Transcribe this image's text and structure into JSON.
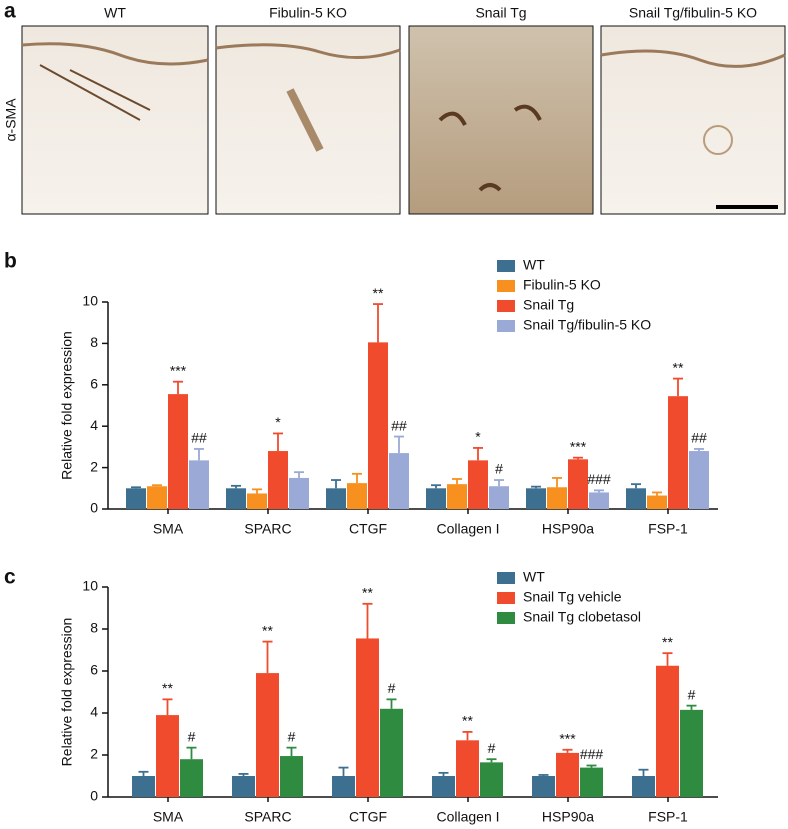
{
  "panel_a": {
    "label": "a",
    "row_label": "α-SMA",
    "columns": [
      "WT",
      "Fibulin-5 KO",
      "Snail Tg",
      "Snail Tg/fibulin-5 KO"
    ]
  },
  "chart_data": [
    {
      "type": "bar",
      "panel_label": "b",
      "ylabel": "Relative fold expression",
      "categories": [
        "SMA",
        "SPARC",
        "CTGF",
        "Collagen I",
        "HSP90a",
        "FSP-1"
      ],
      "ylim": [
        0,
        10
      ],
      "yticks": [
        0,
        2,
        4,
        6,
        8,
        10
      ],
      "series": [
        {
          "name": "WT",
          "color": "#3d7090",
          "values": [
            1.0,
            1.0,
            1.0,
            1.0,
            1.0,
            1.0
          ],
          "errors": [
            0.05,
            0.12,
            0.4,
            0.15,
            0.08,
            0.2
          ]
        },
        {
          "name": "Fibulin-5 KO",
          "color": "#f7901e",
          "values": [
            1.1,
            0.75,
            1.25,
            1.2,
            1.05,
            0.65
          ],
          "errors": [
            0.05,
            0.2,
            0.45,
            0.25,
            0.45,
            0.15
          ]
        },
        {
          "name": "Snail Tg",
          "color": "#ef4b2c",
          "values": [
            5.55,
            2.8,
            8.05,
            2.35,
            2.4,
            5.45
          ],
          "errors": [
            0.6,
            0.85,
            1.85,
            0.6,
            0.08,
            0.85
          ],
          "annotations": [
            "***",
            "*",
            "**",
            "*",
            "***",
            "**"
          ]
        },
        {
          "name": "Snail Tg/fibulin-5 KO",
          "color": "#9aa9d6",
          "values": [
            2.35,
            1.5,
            2.7,
            1.1,
            0.8,
            2.8
          ],
          "errors": [
            0.55,
            0.28,
            0.8,
            0.3,
            0.1,
            0.1
          ],
          "annotations": [
            "##",
            null,
            "##",
            "#",
            "###",
            "##"
          ]
        }
      ]
    },
    {
      "type": "bar",
      "panel_label": "c",
      "ylabel": "Relative fold expression",
      "categories": [
        "SMA",
        "SPARC",
        "CTGF",
        "Collagen I",
        "HSP90a",
        "FSP-1"
      ],
      "ylim": [
        0,
        10
      ],
      "yticks": [
        0,
        2,
        4,
        6,
        8,
        10
      ],
      "series": [
        {
          "name": "WT",
          "color": "#3d7090",
          "values": [
            1.0,
            1.0,
            1.0,
            1.0,
            1.0,
            1.0
          ],
          "errors": [
            0.2,
            0.1,
            0.4,
            0.15,
            0.05,
            0.3
          ]
        },
        {
          "name": "Snail Tg vehicle",
          "color": "#ef4b2c",
          "values": [
            3.9,
            5.9,
            7.55,
            2.7,
            2.1,
            6.25
          ],
          "errors": [
            0.75,
            1.5,
            1.65,
            0.4,
            0.15,
            0.6
          ],
          "annotations": [
            "**",
            "**",
            "**",
            "**",
            "***",
            "**"
          ]
        },
        {
          "name": "Snail Tg clobetasol",
          "color": "#2e8b3f",
          "values": [
            1.8,
            1.95,
            4.2,
            1.65,
            1.4,
            4.15
          ],
          "errors": [
            0.55,
            0.4,
            0.45,
            0.15,
            0.1,
            0.2
          ],
          "annotations": [
            "#",
            "#",
            "#",
            "#",
            "###",
            "#"
          ]
        }
      ]
    }
  ]
}
